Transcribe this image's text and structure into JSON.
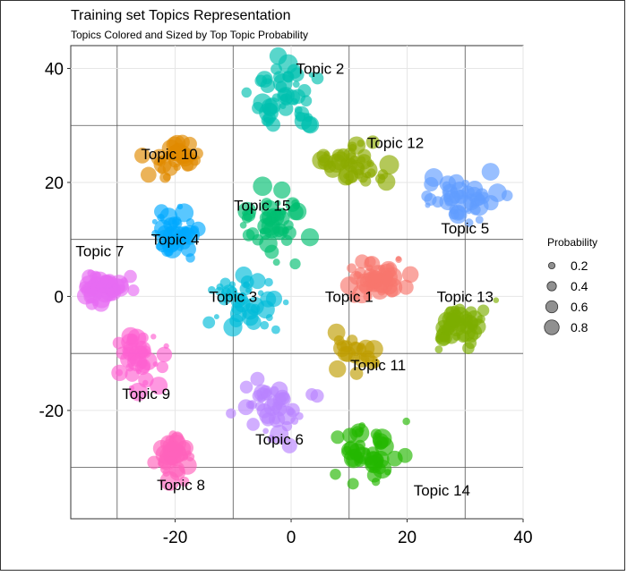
{
  "chart_data": {
    "type": "scatter",
    "title": "Training set Topics Representation",
    "subtitle": "Topics Colored and Sized by Top Topic Probability",
    "xlim": [
      -38,
      40
    ],
    "ylim": [
      -39,
      44
    ],
    "x_ticks": [
      -20,
      0,
      20,
      40
    ],
    "y_ticks": [
      -20,
      0,
      20,
      40
    ],
    "x_tick_labels": [
      "-20",
      "0",
      "20",
      "40"
    ],
    "y_tick_labels": [
      "-20",
      "0",
      "20",
      "40"
    ],
    "grid": true,
    "legend": {
      "title": "Probability",
      "placement": "right",
      "entries": [
        {
          "label": "0.2",
          "value": 0.2
        },
        {
          "label": "0.4",
          "value": 0.4
        },
        {
          "label": "0.6",
          "value": 0.6
        },
        {
          "label": "0.8",
          "value": 0.8
        }
      ]
    },
    "topics": [
      {
        "name": "Topic 1",
        "label_x": 10,
        "label_y": 0,
        "color": "#F8766D",
        "center": [
          15,
          3
        ],
        "spread": [
          5,
          4
        ],
        "n": 45
      },
      {
        "name": "Topic 2",
        "label_x": 5,
        "label_y": 40,
        "color": "#00C0AF",
        "center": [
          -2,
          35
        ],
        "spread": [
          5,
          6
        ],
        "n": 48
      },
      {
        "name": "Topic 3",
        "label_x": -10,
        "label_y": 0,
        "color": "#00BCD8",
        "center": [
          -8,
          0
        ],
        "spread": [
          6,
          5
        ],
        "n": 40
      },
      {
        "name": "Topic 4",
        "label_x": -20,
        "label_y": 10,
        "color": "#00A9FF",
        "center": [
          -20,
          11
        ],
        "spread": [
          4,
          4
        ],
        "n": 45
      },
      {
        "name": "Topic 5",
        "label_x": 30,
        "label_y": 12,
        "color": "#619CFF",
        "center": [
          30,
          17
        ],
        "spread": [
          5,
          4
        ],
        "n": 45
      },
      {
        "name": "Topic 6",
        "label_x": -2,
        "label_y": -25,
        "color": "#B983FF",
        "center": [
          -3,
          -20
        ],
        "spread": [
          6,
          5
        ],
        "n": 45
      },
      {
        "name": "Topic 7",
        "label_x": -33,
        "label_y": 8,
        "color": "#E76BF3",
        "center": [
          -32,
          2
        ],
        "spread": [
          4,
          2
        ],
        "n": 50
      },
      {
        "name": "Topic 8",
        "label_x": -19,
        "label_y": -33,
        "color": "#FF62BC",
        "center": [
          -20,
          -28
        ],
        "spread": [
          3,
          4
        ],
        "n": 40
      },
      {
        "name": "Topic 9",
        "label_x": -25,
        "label_y": -17,
        "color": "#FD61D1",
        "center": [
          -26,
          -11
        ],
        "spread": [
          4,
          5
        ],
        "n": 45
      },
      {
        "name": "Topic 10",
        "label_x": -21,
        "label_y": 25,
        "color": "#E18A00",
        "center": [
          -20,
          24
        ],
        "spread": [
          4,
          3
        ],
        "n": 35
      },
      {
        "name": "Topic 11",
        "label_x": 15,
        "label_y": -12,
        "color": "#BE9C00",
        "center": [
          11,
          -10
        ],
        "spread": [
          3,
          3
        ],
        "n": 22
      },
      {
        "name": "Topic 12",
        "label_x": 18,
        "label_y": 27,
        "color": "#8CAB00",
        "center": [
          11,
          23
        ],
        "spread": [
          5,
          3
        ],
        "n": 45
      },
      {
        "name": "Topic 13",
        "label_x": 30,
        "label_y": 0,
        "color": "#7CAE00",
        "center": [
          29,
          -5
        ],
        "spread": [
          5,
          4
        ],
        "n": 45
      },
      {
        "name": "Topic 14",
        "label_x": 26,
        "label_y": -34,
        "color": "#24B700",
        "center": [
          14,
          -28
        ],
        "spread": [
          5,
          5
        ],
        "n": 45
      },
      {
        "name": "Topic 15",
        "label_x": -5,
        "label_y": 16,
        "color": "#00BE70",
        "center": [
          -3,
          13
        ],
        "spread": [
          5,
          5
        ],
        "n": 45
      }
    ]
  }
}
